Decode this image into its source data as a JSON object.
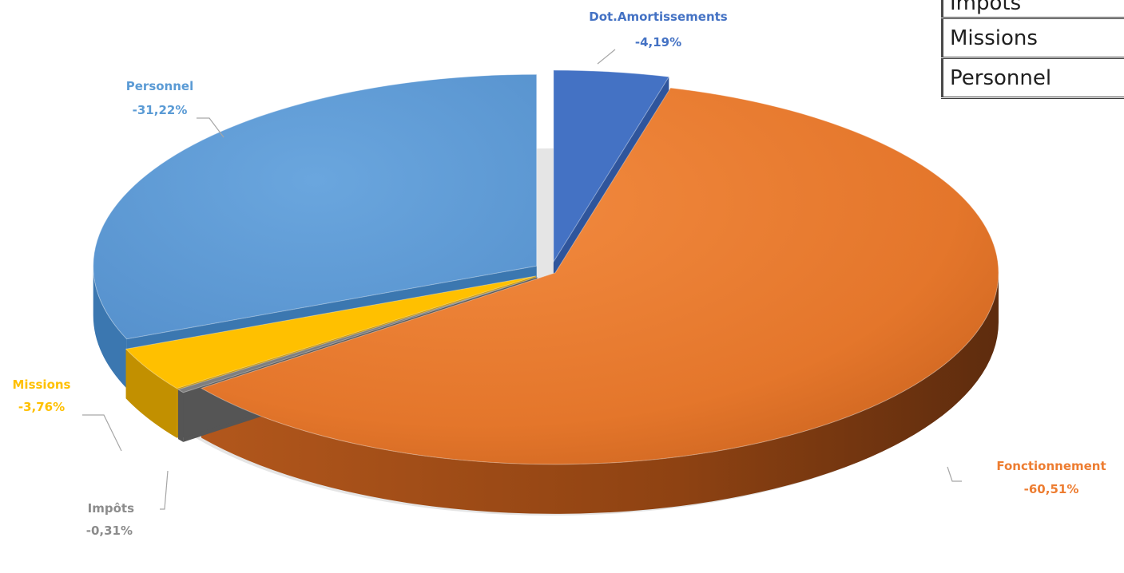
{
  "chart_data": {
    "type": "pie",
    "title": "",
    "labels": [
      "Dot.Amortissements",
      "Fonctionnement",
      "Impôts",
      "Missions",
      "Personnel"
    ],
    "values": [
      -4.19,
      -60.51,
      -0.31,
      -3.76,
      -31.22
    ],
    "value_labels": [
      "-4,19%",
      "-60,51%",
      "-0,31%",
      "-3,76%",
      "-31,22%"
    ],
    "colors": [
      "#4472C4",
      "#ED7D31",
      "#7F7F7F",
      "#FFC000",
      "#5B9BD5"
    ],
    "exploded": true,
    "style": "3d",
    "data_labels": "outside with leader lines"
  },
  "table": {
    "rows": [
      "Impôts",
      "Missions",
      "Personnel"
    ]
  }
}
